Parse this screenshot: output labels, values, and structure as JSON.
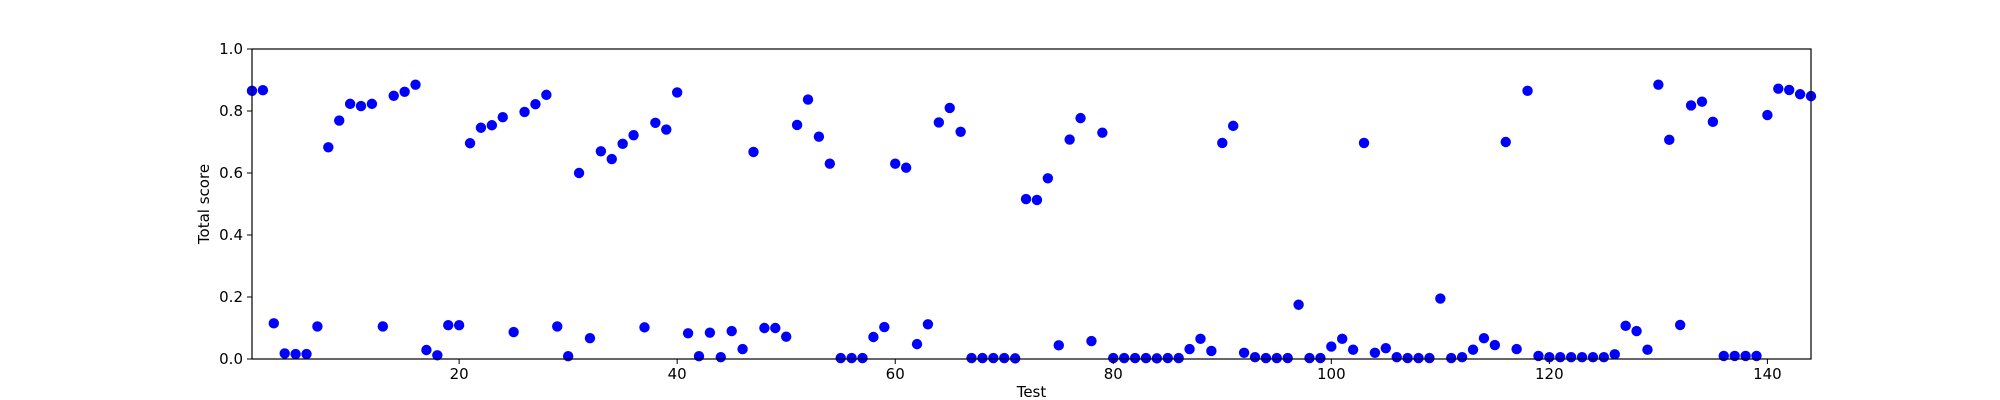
{
  "chart_data": {
    "type": "scatter",
    "xlabel": "Test",
    "ylabel": "Total score",
    "xlim": [
      1,
      144
    ],
    "ylim": [
      0,
      1.0
    ],
    "xticks": [
      20,
      40,
      60,
      80,
      100,
      120,
      140
    ],
    "xtick_labels": [
      "20",
      "40",
      "60",
      "80",
      "100",
      "120",
      "140"
    ],
    "yticks": [
      0,
      0.2,
      0.4,
      0.6,
      0.8,
      1.0
    ],
    "ytick_labels": [
      "0.0",
      "0.2",
      "0.4",
      "0.6",
      "0.8",
      "1.0"
    ],
    "grid": false,
    "marker_color": "#0000ff",
    "points": [
      [
        1,
        0.865
      ],
      [
        2,
        0.867
      ],
      [
        3,
        0.115
      ],
      [
        4,
        0.018
      ],
      [
        5,
        0.016
      ],
      [
        6,
        0.016
      ],
      [
        7,
        0.105
      ],
      [
        8,
        0.683
      ],
      [
        9,
        0.769
      ],
      [
        10,
        0.823
      ],
      [
        11,
        0.816
      ],
      [
        12,
        0.823
      ],
      [
        13,
        0.105
      ],
      [
        14,
        0.849
      ],
      [
        15,
        0.862
      ],
      [
        16,
        0.885
      ],
      [
        17,
        0.029
      ],
      [
        18,
        0.012
      ],
      [
        19,
        0.109
      ],
      [
        20,
        0.109
      ],
      [
        21,
        0.696
      ],
      [
        22,
        0.746
      ],
      [
        23,
        0.754
      ],
      [
        24,
        0.78
      ],
      [
        25,
        0.087
      ],
      [
        26,
        0.797
      ],
      [
        27,
        0.822
      ],
      [
        28,
        0.852
      ],
      [
        29,
        0.105
      ],
      [
        30,
        0.009
      ],
      [
        31,
        0.6
      ],
      [
        32,
        0.067
      ],
      [
        33,
        0.67
      ],
      [
        34,
        0.645
      ],
      [
        35,
        0.694
      ],
      [
        36,
        0.722
      ],
      [
        37,
        0.102
      ],
      [
        38,
        0.762
      ],
      [
        39,
        0.74
      ],
      [
        40,
        0.86
      ],
      [
        41,
        0.083
      ],
      [
        42,
        0.009
      ],
      [
        43,
        0.085
      ],
      [
        44,
        0.006
      ],
      [
        45,
        0.09
      ],
      [
        46,
        0.032
      ],
      [
        47,
        0.668
      ],
      [
        48,
        0.1
      ],
      [
        49,
        0.1
      ],
      [
        50,
        0.072
      ],
      [
        51,
        0.755
      ],
      [
        52,
        0.837
      ],
      [
        53,
        0.717
      ],
      [
        54,
        0.63
      ],
      [
        55,
        0.003
      ],
      [
        56,
        0.003
      ],
      [
        57,
        0.003
      ],
      [
        58,
        0.071
      ],
      [
        59,
        0.103
      ],
      [
        60,
        0.63
      ],
      [
        61,
        0.617
      ],
      [
        62,
        0.048
      ],
      [
        63,
        0.112
      ],
      [
        64,
        0.763
      ],
      [
        65,
        0.81
      ],
      [
        66,
        0.733
      ],
      [
        67,
        0.003
      ],
      [
        68,
        0.003
      ],
      [
        69,
        0.003
      ],
      [
        70,
        0.003
      ],
      [
        71,
        0.002
      ],
      [
        72,
        0.516
      ],
      [
        73,
        0.513
      ],
      [
        74,
        0.583
      ],
      [
        75,
        0.044
      ],
      [
        76,
        0.708
      ],
      [
        77,
        0.777
      ],
      [
        78,
        0.058
      ],
      [
        79,
        0.73
      ],
      [
        80,
        0.003
      ],
      [
        81,
        0.003
      ],
      [
        82,
        0.003
      ],
      [
        83,
        0.003
      ],
      [
        84,
        0.002
      ],
      [
        85,
        0.003
      ],
      [
        86,
        0.003
      ],
      [
        87,
        0.032
      ],
      [
        88,
        0.065
      ],
      [
        89,
        0.026
      ],
      [
        90,
        0.697
      ],
      [
        91,
        0.752
      ],
      [
        92,
        0.02
      ],
      [
        93,
        0.006
      ],
      [
        94,
        0.003
      ],
      [
        95,
        0.003
      ],
      [
        96,
        0.003
      ],
      [
        97,
        0.175
      ],
      [
        98,
        0.003
      ],
      [
        99,
        0.003
      ],
      [
        100,
        0.04
      ],
      [
        101,
        0.065
      ],
      [
        102,
        0.03
      ],
      [
        103,
        0.697
      ],
      [
        104,
        0.02
      ],
      [
        105,
        0.035
      ],
      [
        106,
        0.006
      ],
      [
        107,
        0.003
      ],
      [
        108,
        0.003
      ],
      [
        109,
        0.003
      ],
      [
        110,
        0.195
      ],
      [
        111,
        0.003
      ],
      [
        112,
        0.006
      ],
      [
        113,
        0.03
      ],
      [
        114,
        0.067
      ],
      [
        115,
        0.045
      ],
      [
        116,
        0.7
      ],
      [
        117,
        0.032
      ],
      [
        118,
        0.865
      ],
      [
        119,
        0.01
      ],
      [
        120,
        0.006
      ],
      [
        121,
        0.006
      ],
      [
        122,
        0.006
      ],
      [
        123,
        0.006
      ],
      [
        124,
        0.006
      ],
      [
        125,
        0.006
      ],
      [
        126,
        0.015
      ],
      [
        127,
        0.107
      ],
      [
        128,
        0.09
      ],
      [
        129,
        0.03
      ],
      [
        130,
        0.885
      ],
      [
        131,
        0.707
      ],
      [
        132,
        0.11
      ],
      [
        133,
        0.818
      ],
      [
        134,
        0.83
      ],
      [
        135,
        0.765
      ],
      [
        136,
        0.01
      ],
      [
        137,
        0.01
      ],
      [
        138,
        0.01
      ],
      [
        139,
        0.01
      ],
      [
        140,
        0.787
      ],
      [
        141,
        0.872
      ],
      [
        142,
        0.868
      ],
      [
        143,
        0.854
      ],
      [
        144,
        0.848
      ]
    ]
  }
}
